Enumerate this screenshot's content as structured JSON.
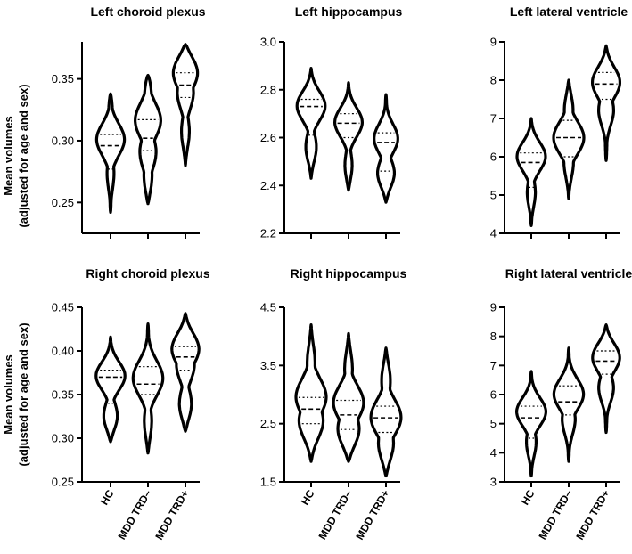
{
  "y_axis_label": [
    "Mean volumes",
    "(adjusted for age and sex)"
  ],
  "chart_data": [
    {
      "type": "violin",
      "title": "Left choroid plexus",
      "categories": [
        "HC",
        "MDD TRD–",
        "MDD TRD+"
      ],
      "ylim": [
        0.225,
        0.38
      ],
      "yticks": [
        0.25,
        0.3,
        0.35
      ],
      "ytick_labels": [
        "0.25",
        "0.30",
        "0.35"
      ],
      "series": [
        {
          "name": "HC",
          "min": 0.242,
          "max": 0.338,
          "q1": 0.277,
          "median": 0.296,
          "q3": 0.305,
          "bulges": [
            [
              0.272,
              0.25
            ],
            [
              0.302,
              0.95
            ],
            [
              0.328,
              0.2
            ]
          ]
        },
        {
          "name": "MDD TRD–",
          "min": 0.249,
          "max": 0.353,
          "q1": 0.292,
          "median": 0.302,
          "q3": 0.317,
          "bulges": [
            [
              0.268,
              0.35
            ],
            [
              0.29,
              0.55
            ],
            [
              0.318,
              0.9
            ],
            [
              0.342,
              0.35
            ]
          ]
        },
        {
          "name": "MDD TRD+",
          "min": 0.28,
          "max": 0.378,
          "q1": 0.335,
          "median": 0.345,
          "q3": 0.355,
          "bulges": [
            [
              0.305,
              0.3
            ],
            [
              0.34,
              0.55
            ],
            [
              0.358,
              1.0
            ]
          ]
        }
      ]
    },
    {
      "type": "violin",
      "title": "Left hippocampus",
      "categories": [
        "HC",
        "MDD TRD–",
        "MDD TRD+"
      ],
      "ylim": [
        2.2,
        3.0
      ],
      "yticks": [
        2.2,
        2.4,
        2.6,
        2.8,
        3.0
      ],
      "ytick_labels": [
        "2.2",
        "2.4",
        "2.6",
        "2.8",
        "3.0"
      ],
      "series": [
        {
          "name": "HC",
          "min": 2.43,
          "max": 2.89,
          "q1": 2.61,
          "median": 2.73,
          "q3": 2.76,
          "bulges": [
            [
              2.55,
              0.4
            ],
            [
              2.74,
              1.0
            ]
          ]
        },
        {
          "name": "MDD TRD–",
          "min": 2.38,
          "max": 2.83,
          "q1": 2.6,
          "median": 2.66,
          "q3": 2.7,
          "bulges": [
            [
              2.47,
              0.3
            ],
            [
              2.67,
              0.95
            ]
          ]
        },
        {
          "name": "MDD TRD+",
          "min": 2.33,
          "max": 2.78,
          "q1": 2.46,
          "median": 2.58,
          "q3": 2.62,
          "bulges": [
            [
              2.44,
              0.65
            ],
            [
              2.6,
              0.8
            ]
          ]
        }
      ]
    },
    {
      "type": "violin",
      "title": "Left lateral ventricle",
      "categories": [
        "HC",
        "MDD TRD–",
        "MDD TRD+"
      ],
      "ylim": [
        4,
        9
      ],
      "yticks": [
        4,
        5,
        6,
        7,
        8,
        9
      ],
      "ytick_labels": [
        "4",
        "5",
        "6",
        "7",
        "8",
        "9"
      ],
      "series": [
        {
          "name": "HC",
          "min": 4.2,
          "max": 7.0,
          "q1": 5.2,
          "median": 5.85,
          "q3": 6.1,
          "bulges": [
            [
              5.0,
              0.3
            ],
            [
              6.05,
              1.0
            ]
          ]
        },
        {
          "name": "MDD TRD–",
          "min": 4.9,
          "max": 8.0,
          "q1": 6.0,
          "median": 6.5,
          "q3": 6.95,
          "bulges": [
            [
              5.8,
              0.35
            ],
            [
              6.5,
              1.0
            ],
            [
              7.3,
              0.35
            ]
          ]
        },
        {
          "name": "MDD TRD+",
          "min": 5.9,
          "max": 8.9,
          "q1": 7.5,
          "median": 7.9,
          "q3": 8.2,
          "bulges": [
            [
              7.2,
              0.5
            ],
            [
              8.0,
              1.0
            ]
          ]
        }
      ]
    },
    {
      "type": "violin",
      "title": "Right choroid plexus",
      "categories": [
        "HC",
        "MDD TRD–",
        "MDD TRD+"
      ],
      "ylim": [
        0.25,
        0.45
      ],
      "yticks": [
        0.25,
        0.3,
        0.35,
        0.4,
        0.45
      ],
      "ytick_labels": [
        "0.25",
        "0.30",
        "0.35",
        "0.40",
        "0.45"
      ],
      "series": [
        {
          "name": "HC",
          "min": 0.296,
          "max": 0.416,
          "q1": 0.34,
          "median": 0.37,
          "q3": 0.378,
          "bulges": [
            [
              0.322,
              0.55
            ],
            [
              0.373,
              1.0
            ]
          ]
        },
        {
          "name": "MDD TRD–",
          "min": 0.283,
          "max": 0.431,
          "q1": 0.35,
          "median": 0.362,
          "q3": 0.382,
          "bulges": [
            [
              0.315,
              0.3
            ],
            [
              0.37,
              1.0
            ]
          ]
        },
        {
          "name": "MDD TRD+",
          "min": 0.308,
          "max": 0.443,
          "q1": 0.378,
          "median": 0.393,
          "q3": 0.405,
          "bulges": [
            [
              0.335,
              0.5
            ],
            [
              0.385,
              0.6
            ],
            [
              0.405,
              1.0
            ]
          ]
        }
      ]
    },
    {
      "type": "violin",
      "title": "Right hippocampus",
      "categories": [
        "HC",
        "MDD TRD–",
        "MDD TRD+"
      ],
      "ylim": [
        1.5,
        4.5
      ],
      "yticks": [
        1.5,
        2.5,
        3.5,
        4.5
      ],
      "ytick_labels": [
        "1.5",
        "2.5",
        "3.5",
        "4.5"
      ],
      "series": [
        {
          "name": "HC",
          "min": 1.85,
          "max": 4.2,
          "q1": 2.5,
          "median": 2.75,
          "q3": 2.95,
          "bulges": [
            [
              2.5,
              0.9
            ],
            [
              2.95,
              1.0
            ],
            [
              3.6,
              0.3
            ]
          ]
        },
        {
          "name": "MDD TRD–",
          "min": 1.85,
          "max": 4.05,
          "q1": 2.4,
          "median": 2.65,
          "q3": 2.9,
          "bulges": [
            [
              2.35,
              0.85
            ],
            [
              2.85,
              1.0
            ],
            [
              3.5,
              0.3
            ]
          ]
        },
        {
          "name": "MDD TRD+",
          "min": 1.6,
          "max": 3.8,
          "q1": 2.35,
          "median": 2.6,
          "q3": 2.8,
          "bulges": [
            [
              2.1,
              0.6
            ],
            [
              2.6,
              1.0
            ],
            [
              3.3,
              0.35
            ]
          ]
        }
      ]
    },
    {
      "type": "violin",
      "title": "Right lateral ventricle",
      "categories": [
        "HC",
        "MDD TRD–",
        "MDD TRD+"
      ],
      "ylim": [
        3,
        9
      ],
      "yticks": [
        3,
        4,
        5,
        6,
        7,
        8,
        9
      ],
      "ytick_labels": [
        "3",
        "4",
        "5",
        "6",
        "7",
        "8",
        "9"
      ],
      "series": [
        {
          "name": "HC",
          "min": 3.2,
          "max": 6.8,
          "q1": 4.5,
          "median": 5.2,
          "q3": 5.6,
          "bulges": [
            [
              4.3,
              0.35
            ],
            [
              5.45,
              1.0
            ]
          ]
        },
        {
          "name": "MDD TRD–",
          "min": 3.7,
          "max": 7.6,
          "q1": 5.3,
          "median": 5.75,
          "q3": 6.3,
          "bulges": [
            [
              5.1,
              0.45
            ],
            [
              6.05,
              1.0
            ]
          ]
        },
        {
          "name": "MDD TRD+",
          "min": 4.7,
          "max": 8.4,
          "q1": 6.7,
          "median": 7.15,
          "q3": 7.5,
          "bulges": [
            [
              6.2,
              0.5
            ],
            [
              7.35,
              1.0
            ]
          ]
        }
      ]
    }
  ]
}
